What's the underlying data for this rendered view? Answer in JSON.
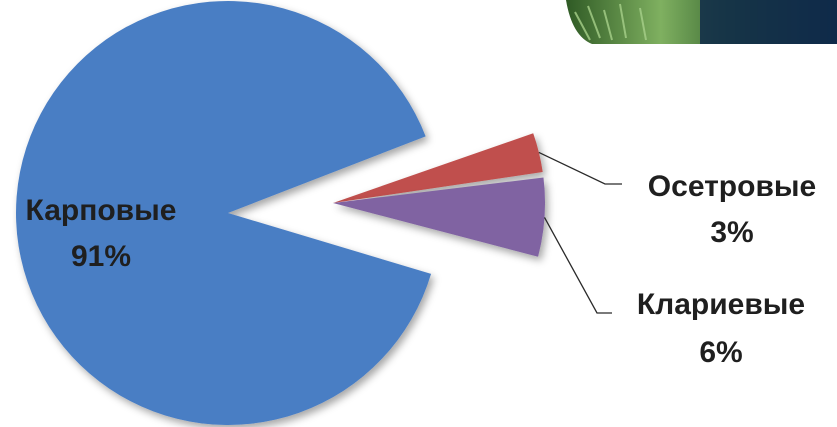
{
  "chart_data": {
    "type": "pie",
    "title": "",
    "slices": [
      {
        "name": "Карповые",
        "value": 91,
        "value_label": "91%",
        "color": "#4a7ec4"
      },
      {
        "name": "Осетровые",
        "value": 3,
        "value_label": "3%",
        "color": "#c0504d"
      },
      {
        "name": "Клариевые",
        "value": 6,
        "value_label": "6%",
        "color": "#8064a2"
      }
    ],
    "exploded": true,
    "legend": "none"
  },
  "decor": {
    "photo_colors": [
      "#1d3d1c",
      "#6fa35a",
      "#0f2a4a"
    ]
  }
}
